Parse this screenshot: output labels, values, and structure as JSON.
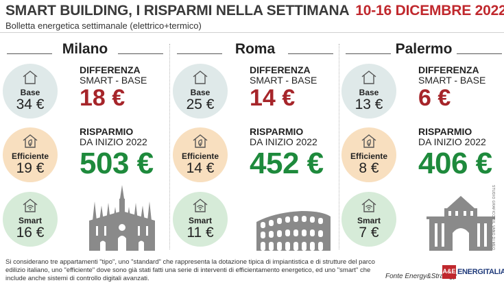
{
  "header": {
    "title": "SMART BUILDING, I RISPARMI NELLA SETTIMANA",
    "date": "10-16 DICEMBRE 2022",
    "subtitle": "Bolletta energetica settimanale (elettrico+termico)"
  },
  "labels": {
    "base": "Base",
    "efficiente": "Efficiente",
    "smart": "Smart",
    "diff_title": "DIFFERENZA",
    "diff_sub": "SMART - BASE",
    "sav_title": "RISPARMIO",
    "sav_sub": "DA INIZIO 2022"
  },
  "cities": [
    {
      "name": "Milano",
      "base": "34 €",
      "efficiente": "19 €",
      "smart": "16 €",
      "differenza": "18 €",
      "risparmio": "503 €",
      "monument_icon": "duomo-milano-icon"
    },
    {
      "name": "Roma",
      "base": "25 €",
      "efficiente": "14 €",
      "smart": "11 €",
      "differenza": "14 €",
      "risparmio": "452 €",
      "monument_icon": "colosseo-icon"
    },
    {
      "name": "Palermo",
      "base": "13 €",
      "efficiente": "8 €",
      "smart": "7 €",
      "differenza": "6 €",
      "risparmio": "406 €",
      "monument_icon": "porta-nuova-palermo-icon"
    }
  ],
  "credit": "STUDIO GRAFICO SIL VANO DI MEO",
  "footer": {
    "note": "Si considerano tre appartamenti \"tipo\", uno \"standard\" che rappresenta la dotazione tipica di impiantistica e di strutture del parco edilizio italiano, uno \"efficiente\" dove sono già stati fatti una serie di interventi di efficientamento energetico, ed uno \"smart\" che include anche sistemi di controllo digitali avanzati.",
    "fonte": "Fonte Energy&Strategy",
    "logo_mark": "A&E",
    "logo_text": "ENERGITALIA"
  },
  "colors": {
    "title": "#3a3a3a",
    "date": "#c0282d",
    "differenza": "#a6252a",
    "risparmio": "#1e8a3c",
    "base_circle": "#dfe9e9",
    "efficiente_circle": "#f8dfbf",
    "smart_circle": "#d6ebd8"
  }
}
